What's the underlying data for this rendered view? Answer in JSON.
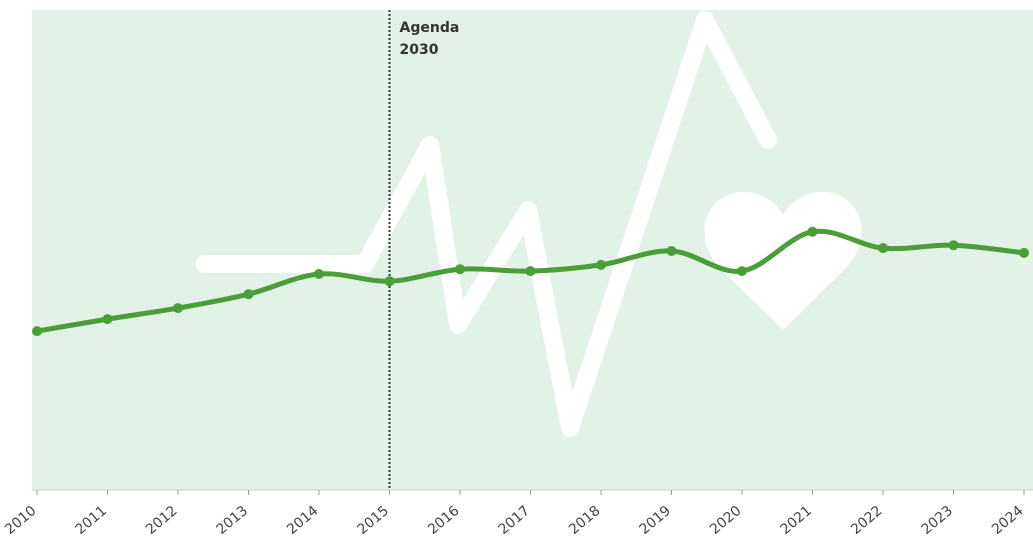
{
  "chart_data": {
    "type": "line",
    "x": [
      2010,
      2011,
      2012,
      2013,
      2014,
      2015,
      2016,
      2017,
      2018,
      2019,
      2020,
      2021,
      2022,
      2023,
      2024
    ],
    "series": [
      {
        "color": "#4a9e37",
        "values": [
          33.1,
          35.6,
          37.9,
          40.8,
          45,
          43.5,
          46,
          45.6,
          46.9,
          49.8,
          45.6,
          53.8,
          50.4,
          51,
          49.4
        ]
      }
    ],
    "xlim": [
      2010,
      2024
    ],
    "xticks": [
      2010,
      2011,
      2012,
      2013,
      2014,
      2015,
      2016,
      2017,
      2018,
      2019,
      2020,
      2021,
      2022,
      2023,
      2024
    ],
    "ylim": [
      0,
      100
    ],
    "annotation": {
      "x": 2015,
      "lines": [
        "Agenda",
        "2030"
      ]
    },
    "background": "#e2f2e6"
  }
}
